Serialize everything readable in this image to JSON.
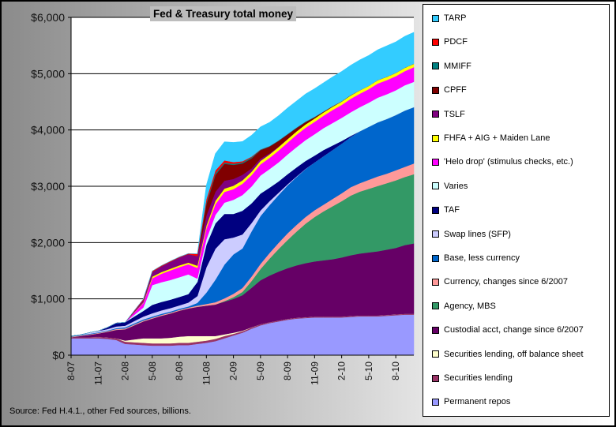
{
  "chart_data": {
    "type": "area",
    "stacked": true,
    "title": "Fed & Treasury total money",
    "source_note": "Source: Fed H.4.1., other Fed sources, billions.",
    "y_axis": {
      "min": 0,
      "max": 6000,
      "step": 1000,
      "tick_labels": [
        "$0",
        "$1,000",
        "$2,000",
        "$3,000",
        "$4,000",
        "$5,000",
        "$6,000"
      ]
    },
    "x_axis": {
      "tick_labels": [
        "8-07",
        "11-07",
        "2-08",
        "5-08",
        "8-08",
        "11-08",
        "2-09",
        "5-09",
        "8-09",
        "11-09",
        "2-10",
        "5-10",
        "8-10"
      ]
    },
    "grid": "horizontal",
    "legend_position": "right",
    "x": [
      "8-07",
      "9-07",
      "10-07",
      "11-07",
      "12-07",
      "1-08",
      "2-08",
      "3-08",
      "4-08",
      "5-08",
      "6-08",
      "7-08",
      "8-08",
      "9-08",
      "10-08",
      "11-08",
      "12-08",
      "1-09",
      "2-09",
      "3-09",
      "4-09",
      "5-09",
      "6-09",
      "7-09",
      "8-09",
      "9-09",
      "10-09",
      "11-09",
      "12-09",
      "1-10",
      "2-10",
      "3-10",
      "4-10",
      "5-10",
      "6-10",
      "7-10",
      "8-10",
      "9-10",
      "10-10"
    ],
    "series": [
      {
        "name": "Permanent repos",
        "color": "#9999ff",
        "values": [
          300,
          300,
          300,
          300,
          290,
          270,
          200,
          190,
          180,
          170,
          170,
          170,
          180,
          180,
          200,
          220,
          250,
          300,
          350,
          400,
          470,
          530,
          570,
          600,
          630,
          650,
          660,
          670,
          670,
          670,
          670,
          680,
          690,
          690,
          690,
          700,
          710,
          720,
          720
        ]
      },
      {
        "name": "Securities lending",
        "color": "#993366",
        "values": [
          20,
          20,
          20,
          25,
          25,
          30,
          40,
          40,
          40,
          40,
          40,
          40,
          40,
          40,
          40,
          40,
          40,
          40,
          30,
          25,
          20,
          20,
          15,
          15,
          15,
          15,
          15,
          15,
          15,
          15,
          15,
          15,
          15,
          15,
          15,
          15,
          15,
          15,
          15
        ]
      },
      {
        "name": "Securities lending, off balance sheet",
        "color": "#ffffcc",
        "values": [
          0,
          0,
          0,
          0,
          0,
          0,
          20,
          50,
          80,
          90,
          90,
          100,
          110,
          120,
          100,
          80,
          50,
          30,
          20,
          10,
          5,
          0,
          0,
          0,
          0,
          0,
          0,
          0,
          0,
          0,
          0,
          0,
          0,
          0,
          0,
          0,
          0,
          0,
          0
        ]
      },
      {
        "name": "Custodial acct, change since 6/2007",
        "color": "#660066",
        "values": [
          0,
          20,
          40,
          60,
          100,
          150,
          200,
          250,
          300,
          350,
          400,
          430,
          460,
          490,
          520,
          540,
          560,
          580,
          600,
          630,
          700,
          780,
          830,
          870,
          900,
          930,
          960,
          980,
          1000,
          1020,
          1050,
          1080,
          1100,
          1120,
          1140,
          1160,
          1180,
          1220,
          1250
        ]
      },
      {
        "name": "Agency, MBS",
        "color": "#339966",
        "values": [
          0,
          0,
          0,
          0,
          0,
          0,
          0,
          0,
          0,
          0,
          0,
          0,
          0,
          0,
          0,
          0,
          0,
          10,
          30,
          60,
          120,
          200,
          300,
          400,
          500,
          600,
          700,
          790,
          870,
          940,
          1000,
          1060,
          1100,
          1130,
          1160,
          1180,
          1200,
          1210,
          1230
        ]
      },
      {
        "name": "Currency, changes since 6/2007",
        "color": "#ff9999",
        "values": [
          10,
          10,
          10,
          10,
          12,
          15,
          15,
          15,
          15,
          15,
          15,
          15,
          15,
          15,
          20,
          30,
          40,
          50,
          60,
          70,
          80,
          90,
          100,
          110,
          120,
          120,
          120,
          120,
          120,
          130,
          140,
          150,
          150,
          160,
          170,
          170,
          180,
          180,
          190
        ]
      },
      {
        "name": "Base, less currency",
        "color": "#0066cc",
        "values": [
          10,
          10,
          10,
          10,
          10,
          15,
          20,
          20,
          20,
          20,
          20,
          20,
          20,
          20,
          50,
          200,
          400,
          600,
          700,
          700,
          800,
          850,
          850,
          850,
          850,
          850,
          850,
          850,
          860,
          870,
          880,
          890,
          920,
          940,
          960,
          970,
          980,
          1000,
          1000
        ]
      },
      {
        "name": "Swap lines (SFP)",
        "color": "#ccccff",
        "values": [
          0,
          0,
          20,
          25,
          25,
          30,
          30,
          40,
          50,
          60,
          60,
          60,
          60,
          70,
          120,
          450,
          550,
          450,
          300,
          250,
          150,
          100,
          70,
          40,
          20,
          10,
          5,
          0,
          0,
          0,
          0,
          0,
          0,
          0,
          0,
          0,
          0,
          0,
          0
        ]
      },
      {
        "name": "TAF",
        "color": "#000080",
        "values": [
          0,
          0,
          0,
          0,
          30,
          60,
          60,
          80,
          100,
          150,
          150,
          150,
          150,
          150,
          250,
          400,
          450,
          450,
          420,
          420,
          350,
          300,
          240,
          200,
          180,
          160,
          140,
          120,
          110,
          80,
          50,
          20,
          0,
          0,
          0,
          0,
          0,
          0,
          0
        ]
      },
      {
        "name": "Varies",
        "color": "#ccffff",
        "values": [
          0,
          0,
          0,
          0,
          0,
          0,
          0,
          30,
          60,
          350,
          350,
          350,
          350,
          350,
          60,
          100,
          150,
          200,
          250,
          280,
          300,
          320,
          330,
          340,
          350,
          360,
          370,
          380,
          390,
          400,
          410,
          420,
          430,
          430,
          440,
          440,
          440,
          450,
          450
        ]
      },
      {
        "name": "'Helo drop' (stimulus checks, etc.)",
        "color": "#ff00ff",
        "values": [
          0,
          0,
          0,
          0,
          0,
          0,
          0,
          40,
          80,
          120,
          150,
          170,
          180,
          180,
          190,
          190,
          190,
          190,
          190,
          200,
          200,
          200,
          200,
          210,
          210,
          220,
          220,
          220,
          220,
          230,
          230,
          240,
          240,
          240,
          250,
          250,
          250,
          250,
          260
        ]
      },
      {
        "name": "FHFA + AIG + Maiden Lane",
        "color": "#ffff00",
        "values": [
          0,
          0,
          0,
          0,
          0,
          0,
          0,
          5,
          10,
          30,
          30,
          30,
          30,
          30,
          40,
          50,
          60,
          60,
          60,
          60,
          60,
          60,
          60,
          60,
          60,
          60,
          60,
          60,
          60,
          60,
          60,
          60,
          60,
          60,
          60,
          60,
          60,
          60,
          60
        ]
      },
      {
        "name": "TSLF",
        "color": "#800080",
        "values": [
          0,
          0,
          0,
          0,
          0,
          0,
          0,
          20,
          40,
          80,
          100,
          120,
          140,
          150,
          170,
          180,
          160,
          140,
          120,
          100,
          60,
          40,
          20,
          10,
          5,
          0,
          0,
          0,
          0,
          0,
          0,
          0,
          0,
          0,
          0,
          0,
          0,
          0,
          0
        ]
      },
      {
        "name": "CPFF",
        "color": "#800000",
        "values": [
          0,
          0,
          0,
          0,
          0,
          0,
          0,
          0,
          0,
          0,
          0,
          0,
          0,
          0,
          0,
          200,
          300,
          300,
          250,
          200,
          180,
          150,
          120,
          100,
          80,
          60,
          40,
          20,
          10,
          5,
          0,
          0,
          0,
          0,
          0,
          0,
          0,
          0,
          0
        ]
      },
      {
        "name": "MMIFF",
        "color": "#008080",
        "values": [
          0,
          0,
          0,
          0,
          0,
          0,
          0,
          0,
          0,
          0,
          0,
          0,
          0,
          0,
          0,
          30,
          30,
          20,
          20,
          20,
          20,
          10,
          10,
          10,
          10,
          10,
          10,
          10,
          5,
          5,
          5,
          5,
          0,
          0,
          0,
          0,
          0,
          0,
          0
        ]
      },
      {
        "name": "PDCF",
        "color": "#ff0000",
        "values": [
          0,
          0,
          0,
          0,
          0,
          0,
          0,
          10,
          20,
          20,
          15,
          15,
          10,
          10,
          40,
          60,
          50,
          40,
          30,
          20,
          10,
          5,
          0,
          0,
          0,
          0,
          0,
          0,
          0,
          0,
          0,
          0,
          0,
          0,
          0,
          0,
          0,
          0,
          0
        ]
      },
      {
        "name": "TARP",
        "color": "#33ccff",
        "values": [
          0,
          0,
          0,
          0,
          0,
          0,
          0,
          0,
          0,
          0,
          0,
          0,
          0,
          0,
          0,
          250,
          300,
          330,
          350,
          350,
          380,
          400,
          420,
          440,
          460,
          470,
          490,
          500,
          510,
          520,
          530,
          530,
          540,
          540,
          540,
          550,
          550,
          560,
          560
        ]
      }
    ]
  }
}
